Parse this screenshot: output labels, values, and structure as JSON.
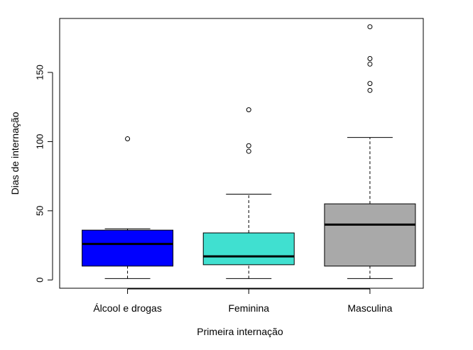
{
  "chart_data": {
    "type": "boxplot",
    "title": "",
    "xlabel": "Primeira internação",
    "ylabel": "Dias de internação",
    "ylim": [
      -6,
      189
    ],
    "yticks": [
      0,
      50,
      100,
      150
    ],
    "grid": false,
    "legend": "none",
    "categories": [
      "Álcool e drogas",
      "Feminina",
      "Masculina"
    ],
    "colors": [
      "#0000FF",
      "#40E0D0",
      "#A9A9A9"
    ],
    "series": [
      {
        "whisker_low": 1,
        "q1": 10,
        "median": 26,
        "q3": 36,
        "whisker_high": 37,
        "outliers": [
          102
        ]
      },
      {
        "whisker_low": 1,
        "q1": 11,
        "median": 17,
        "q3": 34,
        "whisker_high": 62,
        "outliers": [
          93,
          97,
          123
        ]
      },
      {
        "whisker_low": 1,
        "q1": 10,
        "median": 40,
        "q3": 55,
        "whisker_high": 103,
        "outliers": [
          137,
          142,
          156,
          160,
          183
        ]
      }
    ]
  }
}
